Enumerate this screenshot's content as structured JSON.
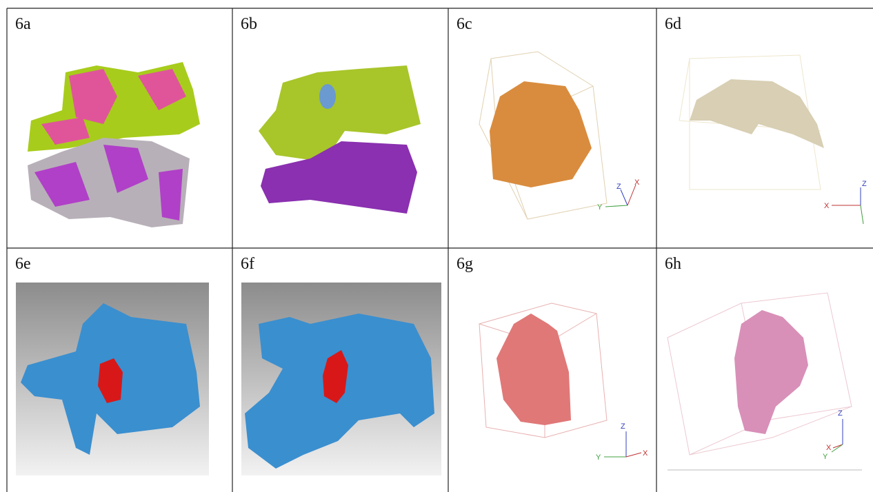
{
  "panels": [
    {
      "label": "6a"
    },
    {
      "label": "6b"
    },
    {
      "label": "6c",
      "axes": [
        "Z",
        "X",
        "Y"
      ]
    },
    {
      "label": "6d",
      "axes": [
        "Z",
        "X"
      ]
    },
    {
      "label": "6e"
    },
    {
      "label": "6f"
    },
    {
      "label": "6g",
      "axes": [
        "Z",
        "Y",
        "X"
      ]
    },
    {
      "label": "6h",
      "axes": [
        "Z",
        "X",
        "Y"
      ]
    }
  ]
}
